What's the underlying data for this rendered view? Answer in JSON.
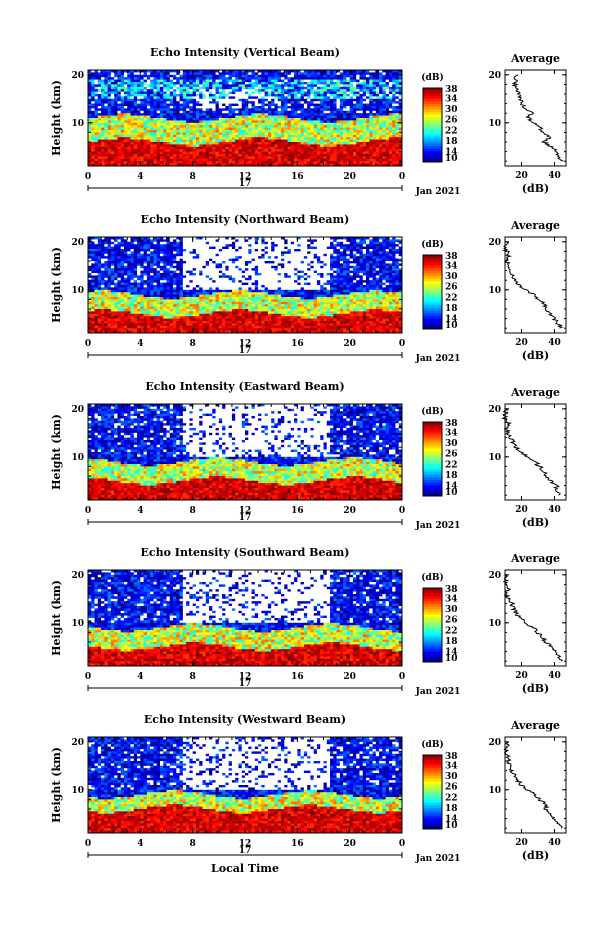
{
  "chart_data": [
    {
      "type": "heatmap",
      "title": "Echo Intensity (Vertical Beam)",
      "ylabel": "Height (km)",
      "x_ticks": [
        "0",
        "4",
        "8",
        "12",
        "16",
        "20",
        "0"
      ],
      "y_ticks": [
        "20",
        "10"
      ],
      "date_label": "17",
      "month_label": "Jan 2021",
      "colorbar": {
        "unit": "(dB)",
        "ticks": [
          "38",
          "34",
          "30",
          "26",
          "22",
          "18",
          "14",
          "10"
        ],
        "range": [
          10,
          38
        ]
      },
      "profile": {
        "title": "Average",
        "xlabel": "(dB)",
        "x_ticks": [
          "20",
          "40"
        ],
        "y_ticks": [
          "20",
          "10"
        ],
        "height_km": [
          2,
          3,
          4,
          5,
          6,
          7,
          8,
          9,
          10,
          11,
          12,
          13,
          14,
          15,
          16,
          17,
          18,
          19,
          20
        ],
        "db": [
          45,
          43,
          42,
          38,
          34,
          37,
          33,
          31,
          27,
          24,
          26,
          22,
          20,
          19,
          18,
          17,
          16,
          16,
          18
        ]
      },
      "layers": {
        "strong_top_km": 6,
        "mid_top_km": 11,
        "cirrus_present": true
      }
    },
    {
      "type": "heatmap",
      "title": "Echo Intensity (Northward Beam)",
      "ylabel": "Height (km)",
      "x_ticks": [
        "0",
        "4",
        "8",
        "12",
        "16",
        "20",
        "0"
      ],
      "y_ticks": [
        "20",
        "10"
      ],
      "date_label": "17",
      "month_label": "Jan 2021",
      "colorbar": {
        "unit": "(dB)",
        "ticks": [
          "38",
          "34",
          "30",
          "26",
          "22",
          "18",
          "14",
          "10"
        ],
        "range": [
          10,
          38
        ]
      },
      "profile": {
        "title": "Average",
        "xlabel": "(dB)",
        "x_ticks": [
          "20",
          "40"
        ],
        "y_ticks": [
          "20",
          "10"
        ],
        "height_km": [
          2,
          3,
          4,
          5,
          6,
          7,
          8,
          9,
          10,
          11,
          12,
          13,
          14,
          15,
          16,
          17,
          18,
          19,
          20
        ],
        "db": [
          44,
          42,
          40,
          37,
          35,
          34,
          30,
          27,
          22,
          18,
          16,
          14,
          13,
          12,
          11,
          12,
          11,
          10,
          11
        ]
      },
      "layers": {
        "strong_top_km": 5,
        "mid_top_km": 9,
        "cirrus_present": false
      }
    },
    {
      "type": "heatmap",
      "title": "Echo Intensity (Eastward Beam)",
      "ylabel": "Height (km)",
      "x_ticks": [
        "0",
        "4",
        "8",
        "12",
        "16",
        "20",
        "0"
      ],
      "y_ticks": [
        "20",
        "10"
      ],
      "date_label": "17",
      "month_label": "Jan 2021",
      "colorbar": {
        "unit": "(dB)",
        "ticks": [
          "38",
          "34",
          "30",
          "26",
          "22",
          "18",
          "14",
          "10"
        ],
        "range": [
          10,
          38
        ]
      },
      "profile": {
        "title": "Average",
        "xlabel": "(dB)",
        "x_ticks": [
          "20",
          "40"
        ],
        "y_ticks": [
          "20",
          "10"
        ],
        "height_km": [
          2,
          3,
          4,
          5,
          6,
          7,
          8,
          9,
          10,
          11,
          12,
          13,
          14,
          15,
          16,
          17,
          18,
          19,
          20
        ],
        "db": [
          44,
          42,
          41,
          38,
          35,
          33,
          31,
          28,
          24,
          20,
          17,
          15,
          13,
          12,
          11,
          12,
          10,
          10,
          11
        ]
      },
      "layers": {
        "strong_top_km": 5,
        "mid_top_km": 9,
        "cirrus_present": false
      }
    },
    {
      "type": "heatmap",
      "title": "Echo Intensity (Southward Beam)",
      "ylabel": "Height (km)",
      "x_ticks": [
        "0",
        "4",
        "8",
        "12",
        "16",
        "20",
        "0"
      ],
      "y_ticks": [
        "20",
        "10"
      ],
      "date_label": "17",
      "month_label": "Jan 2021",
      "colorbar": {
        "unit": "(dB)",
        "ticks": [
          "38",
          "34",
          "30",
          "26",
          "22",
          "18",
          "14",
          "10"
        ],
        "range": [
          10,
          38
        ]
      },
      "profile": {
        "title": "Average",
        "xlabel": "(dB)",
        "x_ticks": [
          "20",
          "40"
        ],
        "y_ticks": [
          "20",
          "10"
        ],
        "height_km": [
          2,
          3,
          4,
          5,
          6,
          7,
          8,
          9,
          10,
          11,
          12,
          13,
          14,
          15,
          16,
          17,
          18,
          19,
          20
        ],
        "db": [
          44,
          43,
          41,
          38,
          35,
          33,
          30,
          27,
          23,
          19,
          17,
          15,
          14,
          12,
          11,
          12,
          11,
          10,
          12
        ]
      },
      "layers": {
        "strong_top_km": 5,
        "mid_top_km": 9,
        "cirrus_present": false
      }
    },
    {
      "type": "heatmap",
      "title": "Echo Intensity (Westward Beam)",
      "ylabel": "Height (km)",
      "xlabel": "Local Time",
      "x_ticks": [
        "0",
        "4",
        "8",
        "12",
        "16",
        "20",
        "0"
      ],
      "y_ticks": [
        "20",
        "10"
      ],
      "date_label": "17",
      "month_label": "Jan 2021",
      "colorbar": {
        "unit": "(dB)",
        "ticks": [
          "38",
          "34",
          "30",
          "26",
          "22",
          "18",
          "14",
          "10"
        ],
        "range": [
          10,
          38
        ]
      },
      "profile": {
        "title": "Average",
        "xlabel": "(dB)",
        "x_ticks": [
          "20",
          "40"
        ],
        "y_ticks": [
          "20",
          "10"
        ],
        "height_km": [
          2,
          3,
          4,
          5,
          6,
          7,
          8,
          9,
          10,
          11,
          12,
          13,
          14,
          15,
          16,
          17,
          18,
          19,
          20
        ],
        "db": [
          44,
          42,
          40,
          38,
          35,
          34,
          31,
          28,
          24,
          20,
          18,
          16,
          14,
          13,
          12,
          12,
          11,
          11,
          12
        ]
      },
      "layers": {
        "strong_top_km": 6,
        "mid_top_km": 9,
        "cirrus_present": false
      }
    }
  ],
  "colors": {
    "jet": [
      "#00007f",
      "#0000ff",
      "#007fff",
      "#00ffff",
      "#7fff7f",
      "#ffff00",
      "#ff7f00",
      "#ff0000",
      "#7f0000"
    ]
  }
}
